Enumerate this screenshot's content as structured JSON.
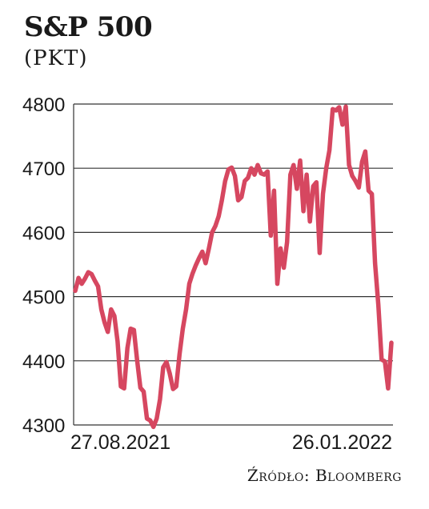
{
  "chart_data": {
    "type": "line",
    "title": "S&P 500",
    "subtitle": "(PKT)",
    "xlabel": "",
    "ylabel": "",
    "ylim": [
      4300,
      4800
    ],
    "yticks": [
      4800,
      4700,
      4600,
      4500,
      4400,
      4300
    ],
    "x_tick_labels": [
      "27.08.2021",
      "26.01.2022"
    ],
    "grid": true,
    "line_color": "#d64760",
    "source": "Źródło: Bloomberg",
    "values": [
      4509,
      4529,
      4520,
      4528,
      4538,
      4535,
      4525,
      4516,
      4480,
      4460,
      4445,
      4480,
      4470,
      4430,
      4360,
      4357,
      4420,
      4450,
      4448,
      4400,
      4358,
      4352,
      4310,
      4307,
      4297,
      4310,
      4340,
      4390,
      4398,
      4380,
      4356,
      4360,
      4410,
      4450,
      4480,
      4520,
      4536,
      4549,
      4560,
      4570,
      4552,
      4575,
      4600,
      4610,
      4625,
      4650,
      4680,
      4698,
      4701,
      4688,
      4650,
      4655,
      4680,
      4685,
      4700,
      4690,
      4705,
      4692,
      4690,
      4695,
      4595,
      4665,
      4520,
      4575,
      4545,
      4585,
      4690,
      4705,
      4668,
      4712,
      4633,
      4690,
      4617,
      4672,
      4678,
      4568,
      4660,
      4700,
      4728,
      4792,
      4790,
      4795,
      4768,
      4796,
      4705,
      4688,
      4680,
      4670,
      4710,
      4726,
      4665,
      4660,
      4552,
      4487,
      4402,
      4399,
      4357,
      4428
    ]
  }
}
